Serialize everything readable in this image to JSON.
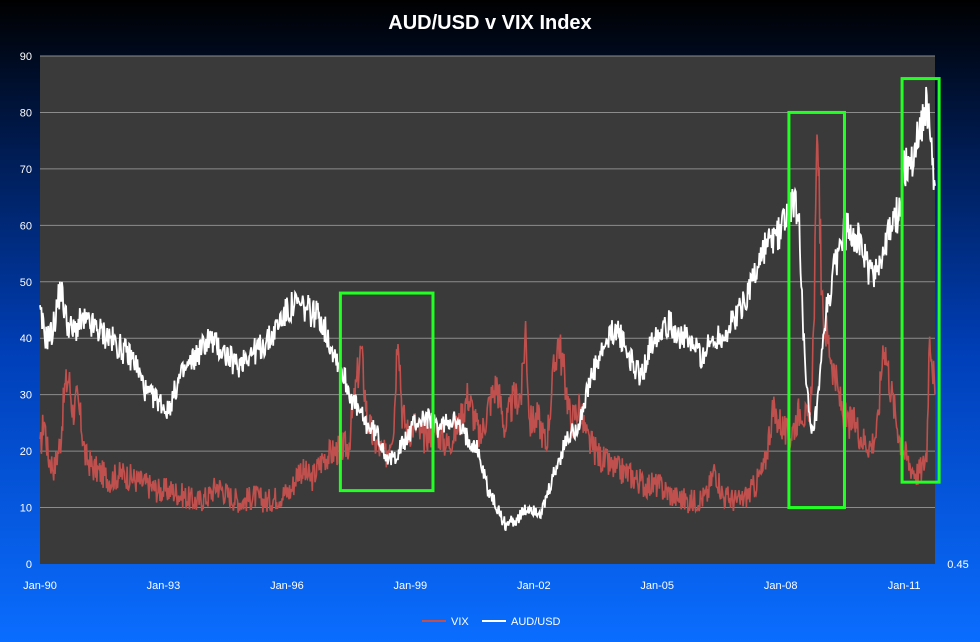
{
  "chart_data": {
    "type": "line",
    "title": "AUD/USD v VIX Index",
    "xlabel": "",
    "ylabel": "",
    "ylim": [
      0,
      90
    ],
    "yticks": [
      0,
      10,
      20,
      30,
      40,
      50,
      60,
      70,
      80,
      90
    ],
    "y2_tick_label": "0.45",
    "x_tick_labels": [
      "Jan-90",
      "Jan-93",
      "Jan-96",
      "Jan-99",
      "Jan-02",
      "Jan-05",
      "Jan-08",
      "Jan-11"
    ],
    "x_tick_years": [
      1990,
      1993,
      1996,
      1999,
      2002,
      2005,
      2008,
      2011
    ],
    "xlim": [
      1990.0,
      2011.75
    ],
    "grid": true,
    "legend_position": "bottom-center",
    "colors": {
      "plot_bg": "#3a3a3a",
      "grid": "#8c8c8c",
      "vix": "#c0504d",
      "aud": "#ffffff",
      "highlight": "#22ff22"
    },
    "series": [
      {
        "name": "VIX",
        "x": [
          1990.0,
          1990.1,
          1990.2,
          1990.35,
          1990.5,
          1990.6,
          1990.7,
          1990.8,
          1990.9,
          1991.0,
          1991.1,
          1991.3,
          1991.5,
          1991.7,
          1992.0,
          1992.3,
          1992.6,
          1992.9,
          1993.2,
          1993.5,
          1993.8,
          1994.1,
          1994.3,
          1994.6,
          1994.9,
          1995.2,
          1995.5,
          1995.8,
          1996.1,
          1996.3,
          1996.6,
          1996.9,
          1997.2,
          1997.5,
          1997.8,
          1997.95,
          1998.1,
          1998.4,
          1998.6,
          1998.7,
          1998.8,
          1998.95,
          1999.1,
          1999.3,
          1999.6,
          1999.9,
          2000.2,
          2000.4,
          2000.7,
          2000.9,
          2001.1,
          2001.3,
          2001.5,
          2001.7,
          2001.8,
          2001.9,
          2002.1,
          2002.3,
          2002.5,
          2002.6,
          2002.75,
          2002.9,
          2003.1,
          2003.3,
          2003.6,
          2003.9,
          2004.3,
          2004.7,
          2005.0,
          2005.4,
          2005.8,
          2006.2,
          2006.4,
          2006.6,
          2007.0,
          2007.3,
          2007.6,
          2007.8,
          2008.0,
          2008.2,
          2008.5,
          2008.7,
          2008.8,
          2008.9,
          2009.0,
          2009.2,
          2009.4,
          2009.6,
          2009.8,
          2010.0,
          2010.2,
          2010.35,
          2010.5,
          2010.7,
          2010.9,
          2011.1,
          2011.3,
          2011.45,
          2011.55,
          2011.62,
          2011.7,
          2011.75
        ],
        "values": [
          20,
          26,
          19,
          17,
          22,
          31,
          33,
          27,
          29,
          25,
          19,
          17,
          16,
          15,
          16,
          15,
          14,
          13,
          13,
          12,
          11,
          12,
          14,
          12,
          11,
          12,
          11,
          12,
          13,
          17,
          15,
          19,
          20,
          21,
          38,
          26,
          22,
          19,
          25,
          43,
          27,
          23,
          25,
          22,
          24,
          21,
          25,
          30,
          22,
          28,
          32,
          24,
          29,
          30,
          42,
          25,
          26,
          21,
          35,
          40,
          33,
          25,
          28,
          22,
          19,
          17,
          16,
          14,
          14,
          12,
          11,
          12,
          17,
          12,
          11,
          13,
          17,
          27,
          25,
          22,
          28,
          24,
          41,
          79,
          45,
          38,
          30,
          25,
          25,
          22,
          21,
          24,
          40,
          30,
          22,
          18,
          16,
          17,
          20,
          42,
          35,
          30
        ]
      },
      {
        "name": "AUD/USD",
        "x": [
          1990.0,
          1990.15,
          1990.3,
          1990.5,
          1990.65,
          1990.8,
          1991.0,
          1991.3,
          1991.7,
          1992.0,
          1992.3,
          1992.6,
          1992.9,
          1993.1,
          1993.4,
          1993.8,
          1994.1,
          1994.4,
          1994.8,
          1995.0,
          1995.3,
          1995.6,
          1995.9,
          1996.2,
          1996.5,
          1996.8,
          1997.0,
          1997.3,
          1997.6,
          1997.9,
          1998.2,
          1998.5,
          1998.7,
          1998.9,
          1999.1,
          1999.4,
          1999.7,
          2000.0,
          2000.3,
          2000.6,
          2000.9,
          2001.1,
          2001.3,
          2001.6,
          2001.9,
          2002.2,
          2002.5,
          2002.8,
          2003.1,
          2003.4,
          2003.7,
          2004.0,
          2004.3,
          2004.6,
          2004.9,
          2005.2,
          2005.5,
          2005.8,
          2006.1,
          2006.4,
          2006.7,
          2007.0,
          2007.3,
          2007.6,
          2007.9,
          2008.1,
          2008.3,
          2008.45,
          2008.6,
          2008.75,
          2008.9,
          2009.1,
          2009.3,
          2009.5,
          2009.7,
          2009.9,
          2010.2,
          2010.5,
          2010.7,
          2010.9,
          2011.0,
          2011.2,
          2011.4,
          2011.55,
          2011.65,
          2011.75
        ],
        "values": [
          44,
          40,
          41,
          49,
          43,
          41,
          43,
          42,
          40,
          38,
          36,
          30,
          29,
          27,
          33,
          37,
          40,
          38,
          35,
          37,
          38,
          40,
          44,
          46,
          45,
          44,
          40,
          35,
          29,
          25,
          23,
          18,
          20,
          22,
          25,
          26,
          24,
          26,
          23,
          21,
          13,
          10,
          7,
          8,
          10,
          9,
          16,
          22,
          25,
          33,
          38,
          42,
          37,
          33,
          40,
          43,
          41,
          39,
          37,
          40,
          41,
          45,
          50,
          56,
          58,
          61,
          65,
          60,
          33,
          22,
          28,
          44,
          52,
          58,
          60,
          57,
          51,
          55,
          60,
          63,
          70,
          72,
          78,
          81,
          76,
          67
        ]
      }
    ],
    "highlight_boxes": [
      {
        "x0": 1997.3,
        "x1": 1999.55,
        "y0": 13,
        "y1": 48
      },
      {
        "x0": 2008.2,
        "x1": 2009.55,
        "y0": 10,
        "y1": 80
      },
      {
        "x0": 2010.95,
        "x1": 2011.85,
        "y0": 14.5,
        "y1": 86
      }
    ]
  }
}
